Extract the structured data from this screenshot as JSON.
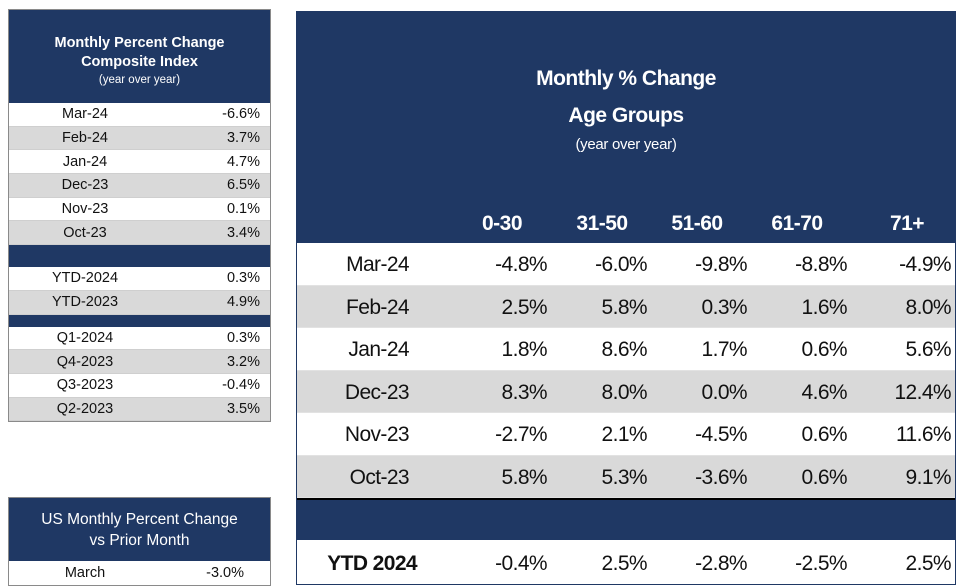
{
  "composite": {
    "title_line1": "Monthly Percent Change",
    "title_line2": "Composite Index",
    "subtitle": "(year over year)",
    "monthly": [
      {
        "label": "Mar-24",
        "value": "-6.6%"
      },
      {
        "label": "Feb-24",
        "value": "3.7%"
      },
      {
        "label": "Jan-24",
        "value": "4.7%"
      },
      {
        "label": "Dec-23",
        "value": "6.5%"
      },
      {
        "label": "Nov-23",
        "value": "0.1%"
      },
      {
        "label": "Oct-23",
        "value": "3.4%"
      }
    ],
    "ytd": [
      {
        "label": "YTD-2024",
        "value": "0.3%"
      },
      {
        "label": "YTD-2023",
        "value": "4.9%"
      }
    ],
    "quarterly": [
      {
        "label": "Q1-2024",
        "value": "0.3%"
      },
      {
        "label": "Q4-2023",
        "value": "3.2%"
      },
      {
        "label": "Q3-2023",
        "value": "-0.4%"
      },
      {
        "label": "Q2-2023",
        "value": "3.5%"
      }
    ]
  },
  "us": {
    "title_line1": "US Monthly Percent Change",
    "title_line2": "vs Prior Month",
    "row": {
      "label": "March",
      "value": "-3.0%"
    }
  },
  "age": {
    "title_line1": "Monthly % Change",
    "title_line2": "Age Groups",
    "subtitle": "(year over year)",
    "columns": [
      "0-30",
      "31-50",
      "51-60",
      "61-70",
      "71+"
    ],
    "rows": [
      {
        "label": "Mar-24",
        "values": [
          "-4.8%",
          "-6.0%",
          "-9.8%",
          "-8.8%",
          "-4.9%"
        ]
      },
      {
        "label": "Feb-24",
        "values": [
          "2.5%",
          "5.8%",
          "0.3%",
          "1.6%",
          "8.0%"
        ]
      },
      {
        "label": "Jan-24",
        "values": [
          "1.8%",
          "8.6%",
          "1.7%",
          "0.6%",
          "5.6%"
        ]
      },
      {
        "label": "Dec-23",
        "values": [
          "8.3%",
          "8.0%",
          "0.0%",
          "4.6%",
          "12.4%"
        ]
      },
      {
        "label": "Nov-23",
        "values": [
          "-2.7%",
          "2.1%",
          "-4.5%",
          "0.6%",
          "11.6%"
        ]
      },
      {
        "label": "Oct-23",
        "values": [
          "5.8%",
          "5.3%",
          "-3.6%",
          "0.6%",
          "9.1%"
        ]
      }
    ],
    "ytd": {
      "label": "YTD 2024",
      "values": [
        "-0.4%",
        "2.5%",
        "-2.8%",
        "-2.5%",
        "2.5%"
      ]
    }
  }
}
